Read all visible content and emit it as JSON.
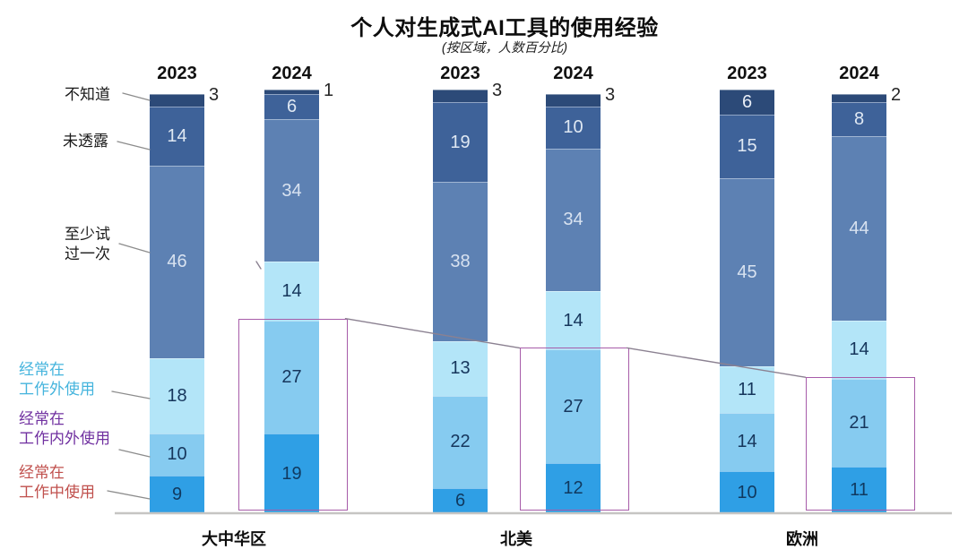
{
  "chart_data": {
    "type": "bar",
    "variant": "stacked-percent-columns",
    "title": "个人对生成式AI工具的使用经验",
    "subtitle": "(按区域，人数百分比)",
    "value_unit": "%",
    "grid": false,
    "legend_position": "left",
    "category_order": "top-to-bottom",
    "categories": [
      {
        "key": "dont-know",
        "label_lines": [
          "不知道"
        ],
        "color": "#2c4a78",
        "value_color": "#e9eef7",
        "label_color": "#1a1a1a"
      },
      {
        "key": "undisclosed",
        "label_lines": [
          "未透露"
        ],
        "color": "#3e6299",
        "value_color": "#dfe8f3",
        "label_color": "#1a1a1a"
      },
      {
        "key": "tried-once",
        "label_lines": [
          "至少试",
          "过一次"
        ],
        "color": "#5d81b3",
        "value_color": "#d8e2f0",
        "label_color": "#1a1a1a"
      },
      {
        "key": "outside-work",
        "label_lines": [
          "经常在",
          "工作外使用"
        ],
        "color": "#b3e5f8",
        "value_color": "#16365c",
        "label_color": "#45b4dd"
      },
      {
        "key": "in-out-work",
        "label_lines": [
          "经常在",
          "工作内外使用"
        ],
        "color": "#86cbf0",
        "value_color": "#16365c",
        "label_color": "#7030a0"
      },
      {
        "key": "at-work",
        "label_lines": [
          "经常在",
          "工作中使用"
        ],
        "color": "#2f9fe5",
        "value_color": "#10395f",
        "label_color": "#c0504d"
      }
    ],
    "groups": [
      {
        "key": "greater-china",
        "region": "大中华区",
        "bars": [
          {
            "year": "2023",
            "values": [
              3,
              14,
              46,
              18,
              10,
              9
            ],
            "outside_label": "3",
            "highlighted": false
          },
          {
            "year": "2024",
            "values": [
              1,
              6,
              34,
              14,
              27,
              19
            ],
            "outside_label": "1",
            "highlighted": true
          }
        ]
      },
      {
        "key": "north-america",
        "region": "北美",
        "bars": [
          {
            "year": "2023",
            "values": [
              3,
              19,
              38,
              13,
              22,
              6
            ],
            "outside_label": "3",
            "highlighted": false
          },
          {
            "year": "2024",
            "values": [
              3,
              10,
              34,
              14,
              27,
              12
            ],
            "outside_label": "3",
            "highlighted": true
          }
        ]
      },
      {
        "key": "europe",
        "region": "欧洲",
        "bars": [
          {
            "year": "2023",
            "values": [
              6,
              15,
              45,
              11,
              14,
              10
            ],
            "outside_label": null,
            "highlighted": false
          },
          {
            "year": "2024",
            "values": [
              2,
              8,
              44,
              14,
              21,
              11
            ],
            "outside_label": "2",
            "highlighted": true
          }
        ]
      }
    ],
    "annotations": {
      "highlight_box_color": "#a75ca9",
      "highlight_meaning": "2024 经常使用 (工作内外 + 工作中) 部分",
      "trend_line": "connects highlighted 2024 boxes across regions, descending left to right"
    }
  }
}
